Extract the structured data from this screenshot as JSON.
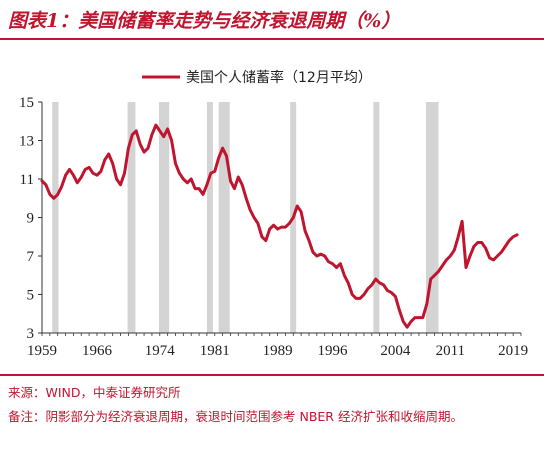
{
  "header": {
    "title": "图表1：美国储蓄率走势与经济衰退周期（%）"
  },
  "footer": {
    "source": "来源：WIND，中泰证券研究所",
    "note": "备注：阴影部分为经济衰退周期，衰退时间范围参考 NBER 经济扩张和收缩周期。"
  },
  "chart_data": {
    "type": "line",
    "legend_position": "top-center",
    "grid": false,
    "ylim": [
      3,
      15
    ],
    "xlim": [
      1959,
      2020
    ],
    "y_ticks": [
      3,
      5,
      7,
      9,
      11,
      13,
      15
    ],
    "x_tick_labels": [
      "1959",
      "1966",
      "1974",
      "1981",
      "1989",
      "1996",
      "2004",
      "2011",
      "2019"
    ],
    "x_tick_positions": [
      1959,
      1966,
      1974,
      1981,
      1989,
      1996,
      2004,
      2011,
      2019
    ],
    "recessions": [
      [
        1960.3,
        1961.1
      ],
      [
        1969.9,
        1970.9
      ],
      [
        1973.9,
        1975.2
      ],
      [
        1980.0,
        1980.6
      ],
      [
        1981.5,
        1982.9
      ],
      [
        1990.6,
        1991.2
      ],
      [
        2001.2,
        2001.9
      ],
      [
        2007.9,
        2009.5
      ]
    ],
    "series": [
      {
        "name": "美国个人储蓄率（12月平均）",
        "color": "#c0152f",
        "x": [
          1959.0,
          1959.5,
          1960.0,
          1960.5,
          1961.0,
          1961.5,
          1962.0,
          1962.5,
          1963.0,
          1963.5,
          1964.0,
          1964.5,
          1965.0,
          1965.5,
          1966.0,
          1966.5,
          1967.0,
          1967.5,
          1968.0,
          1968.5,
          1969.0,
          1969.5,
          1970.0,
          1970.5,
          1971.0,
          1971.5,
          1972.0,
          1972.5,
          1973.0,
          1973.5,
          1974.0,
          1974.5,
          1975.0,
          1975.5,
          1976.0,
          1976.5,
          1977.0,
          1977.5,
          1978.0,
          1978.5,
          1979.0,
          1979.5,
          1980.0,
          1980.5,
          1981.0,
          1981.5,
          1982.0,
          1982.5,
          1983.0,
          1983.5,
          1984.0,
          1984.5,
          1985.0,
          1985.5,
          1986.0,
          1986.5,
          1987.0,
          1987.5,
          1988.0,
          1988.5,
          1989.0,
          1989.5,
          1990.0,
          1990.5,
          1991.0,
          1991.5,
          1992.0,
          1992.5,
          1993.0,
          1993.5,
          1994.0,
          1994.5,
          1995.0,
          1995.5,
          1996.0,
          1996.5,
          1997.0,
          1997.5,
          1998.0,
          1998.5,
          1999.0,
          1999.5,
          2000.0,
          2000.5,
          2001.0,
          2001.5,
          2002.0,
          2002.5,
          2003.0,
          2003.5,
          2004.0,
          2004.5,
          2005.0,
          2005.5,
          2006.0,
          2006.5,
          2007.0,
          2007.5,
          2008.0,
          2008.5,
          2009.0,
          2009.5,
          2010.0,
          2010.5,
          2011.0,
          2011.5,
          2012.0,
          2012.5,
          2013.0,
          2013.5,
          2014.0,
          2014.5,
          2015.0,
          2015.5,
          2016.0,
          2016.5,
          2017.0,
          2017.5,
          2018.0,
          2018.5,
          2019.0,
          2019.5
        ],
        "values": [
          10.9,
          10.7,
          10.2,
          10.0,
          10.2,
          10.6,
          11.2,
          11.5,
          11.2,
          10.8,
          11.1,
          11.5,
          11.6,
          11.3,
          11.2,
          11.4,
          12.0,
          12.3,
          11.8,
          11.0,
          10.7,
          11.3,
          12.6,
          13.3,
          13.5,
          12.8,
          12.4,
          12.6,
          13.3,
          13.8,
          13.5,
          13.2,
          13.6,
          13.0,
          11.8,
          11.3,
          11.0,
          10.8,
          11.0,
          10.5,
          10.5,
          10.2,
          10.7,
          11.3,
          11.4,
          12.1,
          12.6,
          12.2,
          10.9,
          10.5,
          11.1,
          10.7,
          10.0,
          9.4,
          9.0,
          8.7,
          8.0,
          7.8,
          8.4,
          8.6,
          8.4,
          8.5,
          8.5,
          8.7,
          9.0,
          9.6,
          9.3,
          8.3,
          7.8,
          7.2,
          7.0,
          7.1,
          7.0,
          6.7,
          6.6,
          6.4,
          6.6,
          6.0,
          5.6,
          5.0,
          4.8,
          4.8,
          5.0,
          5.3,
          5.5,
          5.8,
          5.6,
          5.5,
          5.2,
          5.1,
          4.9,
          4.2,
          3.6,
          3.3,
          3.6,
          3.8,
          3.8,
          3.8,
          4.5,
          5.8,
          6.0,
          6.2,
          6.5,
          6.8,
          7.0,
          7.3,
          8.0,
          8.8,
          6.4,
          7.0,
          7.5,
          7.7,
          7.7,
          7.4,
          6.9,
          6.8,
          7.0,
          7.2,
          7.5,
          7.8,
          8.0,
          8.1
        ]
      }
    ]
  }
}
